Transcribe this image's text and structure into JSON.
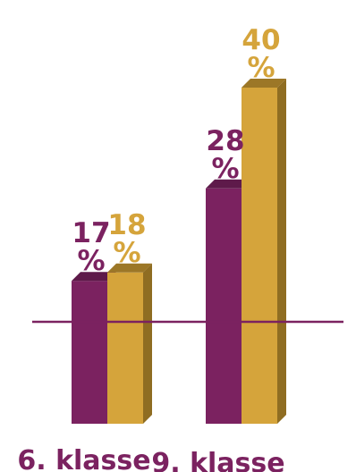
{
  "chart_data": {
    "type": "bar",
    "categories": [
      "6. klasse",
      "9. klasse"
    ],
    "series": [
      {
        "values": [
          17,
          28
        ],
        "labels": [
          "17 %",
          "28 %"
        ]
      },
      {
        "values": [
          18,
          40
        ],
        "labels": [
          "18 %",
          "40 %"
        ]
      }
    ],
    "colors": {
      "series": [
        "#7b2260",
        "#d5a43b"
      ],
      "series_side": [
        "#5a1848",
        "#8f6d22"
      ],
      "series_top": [
        "#5e1a4a",
        "#9c7727"
      ],
      "label": [
        "#7b2260",
        "#d5a43b"
      ],
      "baseline": "#7b2260"
    },
    "ylim": [
      0,
      40
    ],
    "baseline_value": 9,
    "grid": false,
    "legend": "none",
    "style": "3d-bars"
  }
}
